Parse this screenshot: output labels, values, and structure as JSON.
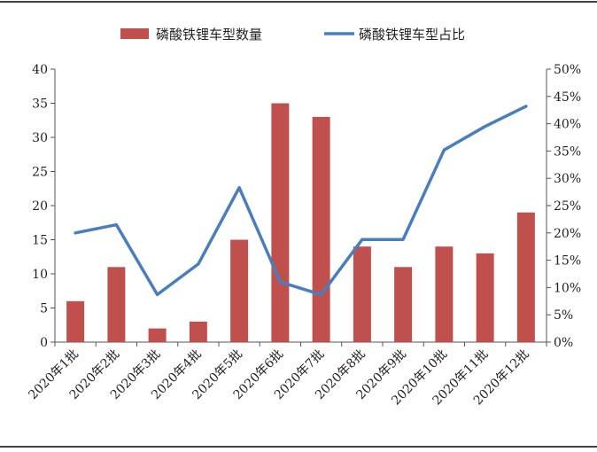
{
  "chart_data": {
    "type": "bar",
    "categories": [
      "2020年1批",
      "2020年2批",
      "2020年3批",
      "2020年4批",
      "2020年5批",
      "2020年6批",
      "2020年7批",
      "2020年8批",
      "2020年9批",
      "2020年10批",
      "2020年11批",
      "2020年12批"
    ],
    "series": [
      {
        "name": "磷酸铁锂车型数量",
        "type": "bar",
        "axis": "left",
        "color": "#c0504d",
        "values": [
          6,
          11,
          2,
          3,
          15,
          35,
          33,
          14,
          11,
          14,
          13,
          19
        ]
      },
      {
        "name": "磷酸铁锂车型占比",
        "type": "line",
        "axis": "right",
        "color": "#4a7ebb",
        "values": [
          0.2,
          0.215,
          0.087,
          0.143,
          0.283,
          0.11,
          0.087,
          0.188,
          0.188,
          0.352,
          0.395,
          0.432
        ]
      }
    ],
    "y_left": {
      "min": 0,
      "max": 40,
      "step": 5,
      "ticks": [
        "0",
        "5",
        "10",
        "15",
        "20",
        "25",
        "30",
        "35",
        "40"
      ]
    },
    "y_right": {
      "min": 0,
      "max": 0.5,
      "step": 0.05,
      "ticks": [
        "0%",
        "5%",
        "10%",
        "15%",
        "20%",
        "25%",
        "30%",
        "35%",
        "40%",
        "45%",
        "50%"
      ]
    },
    "title": "",
    "xlabel": "",
    "ylabel": "",
    "grid": false,
    "legend_position": "top"
  }
}
